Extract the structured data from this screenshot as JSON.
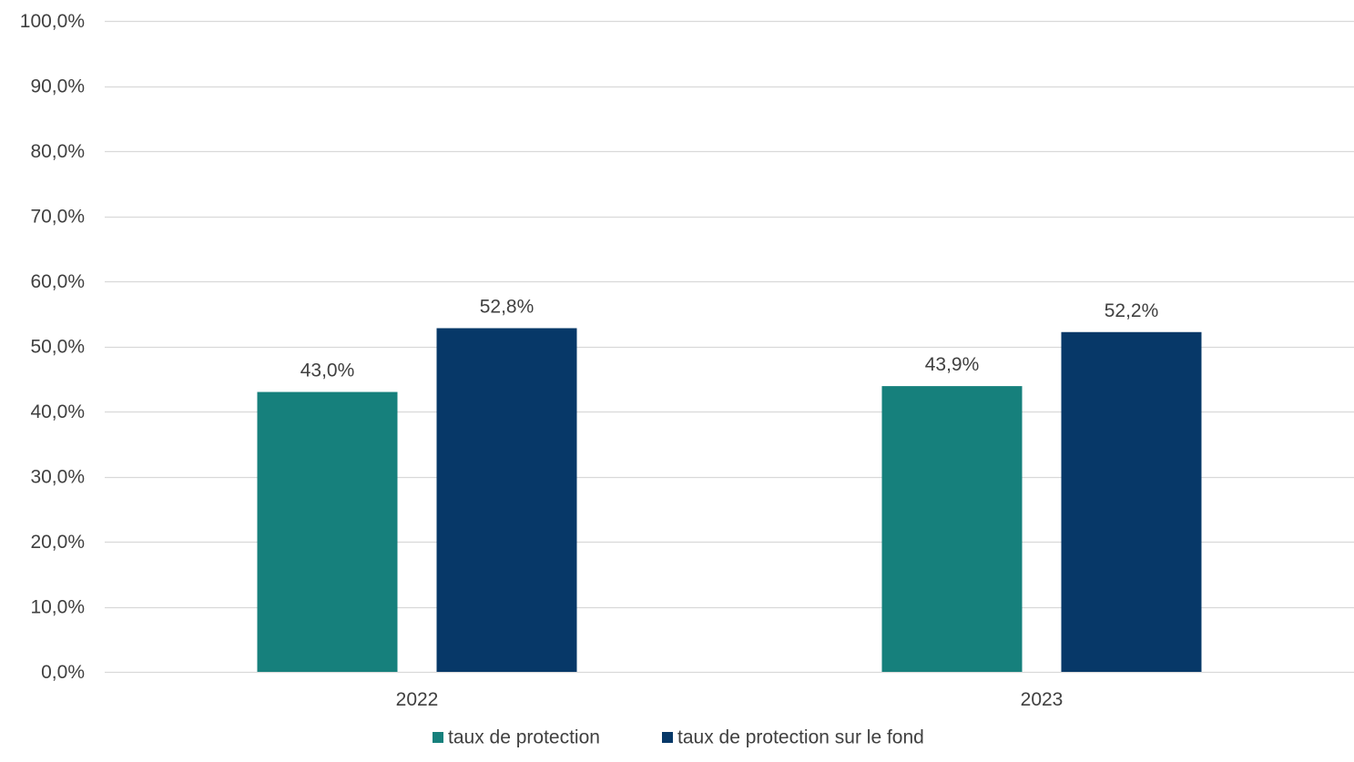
{
  "chart_data": {
    "type": "bar",
    "categories": [
      "2022",
      "2023"
    ],
    "series": [
      {
        "name": "taux de protection",
        "values": [
          43.0,
          43.9
        ],
        "labels": [
          "43,0%",
          "43,9%"
        ],
        "color": "#16807c"
      },
      {
        "name": "taux de protection sur le fond",
        "values": [
          52.8,
          52.2
        ],
        "labels": [
          "52,8%",
          "52,2%"
        ],
        "color": "#073868"
      }
    ],
    "ylim": [
      0,
      100
    ],
    "yticks": [
      0,
      10,
      20,
      30,
      40,
      50,
      60,
      70,
      80,
      90,
      100
    ],
    "ytick_labels": [
      "0,0%",
      "10,0%",
      "20,0%",
      "30,0%",
      "40,0%",
      "50,0%",
      "60,0%",
      "70,0%",
      "80,0%",
      "90,0%",
      "100,0%"
    ],
    "title": "",
    "xlabel": "",
    "ylabel": "",
    "grid": true,
    "legend_position": "bottom",
    "gridline_color": "#d9d9d9",
    "text_color": "#404040"
  }
}
